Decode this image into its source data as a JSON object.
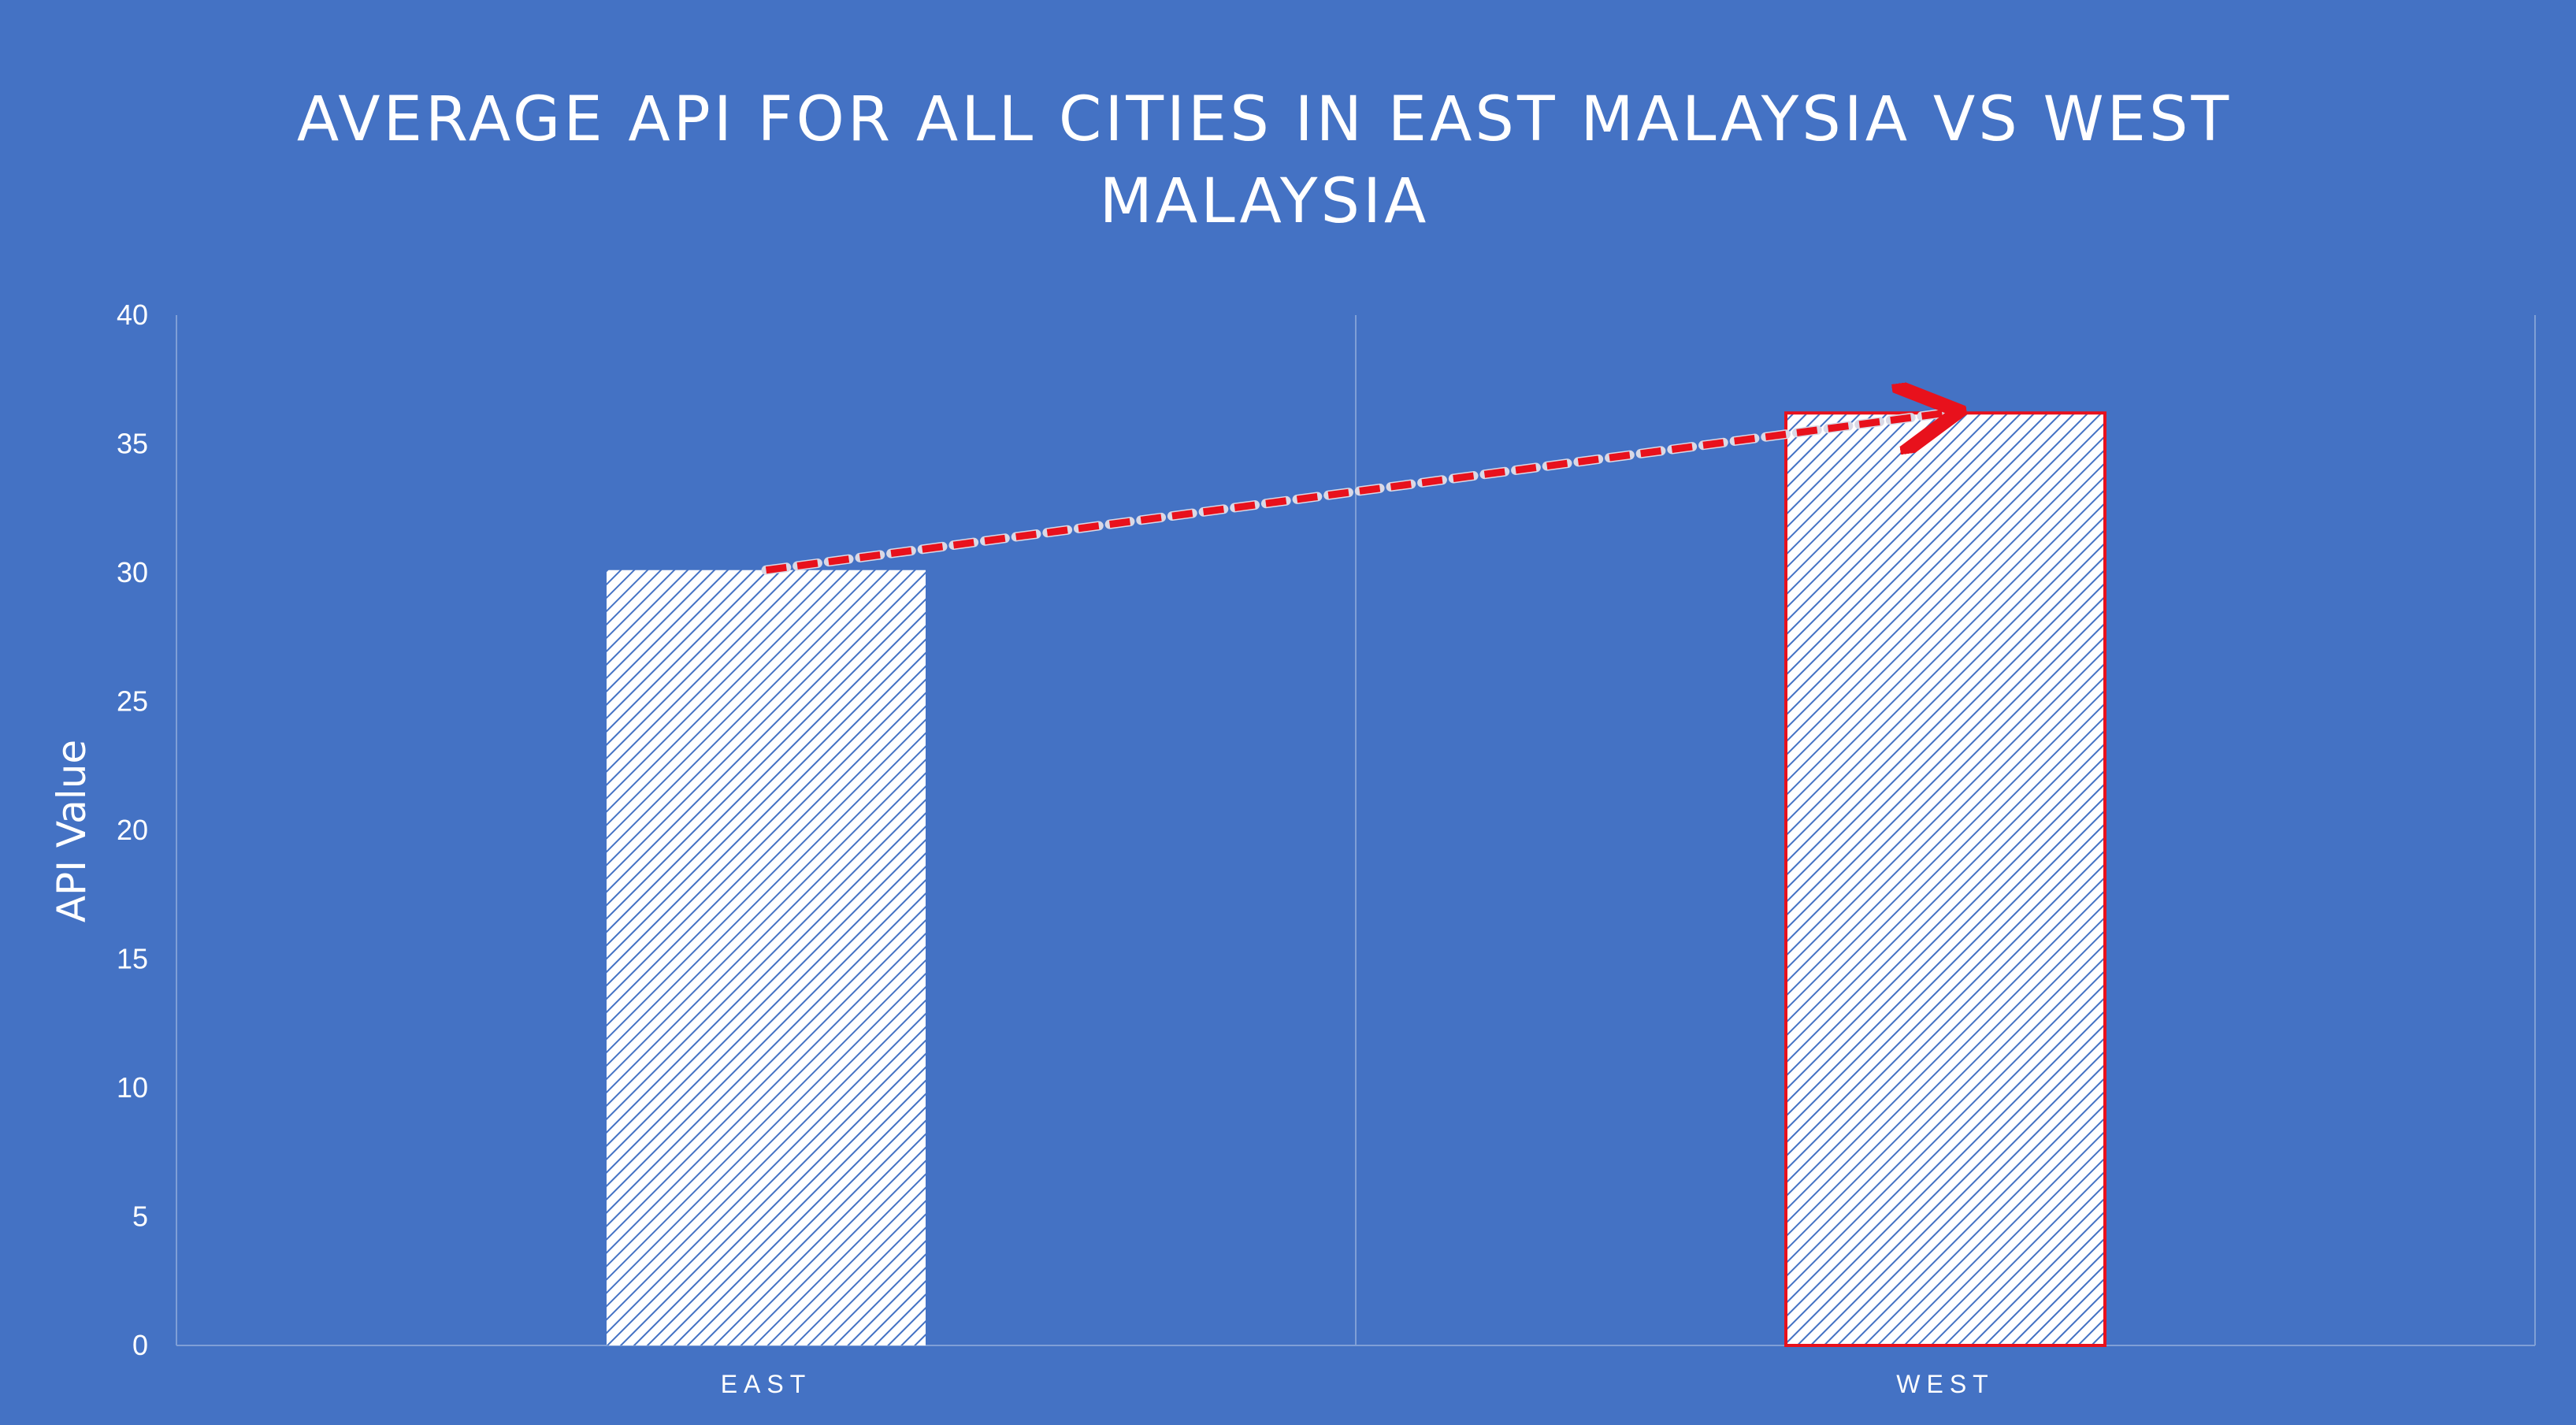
{
  "chart_data": {
    "type": "bar",
    "title_lines": [
      "AVERAGE API FOR ALL CITIES IN EAST MALAYSIA VS WEST",
      "MALAYSIA"
    ],
    "xlabel": "",
    "ylabel": "API Value",
    "categories": [
      "EAST",
      "WEST"
    ],
    "values": [
      30.1,
      36.2
    ],
    "ylim": [
      0,
      40
    ],
    "yticks": [
      "0",
      "5",
      "10",
      "15",
      "20",
      "25",
      "30",
      "35",
      "40"
    ],
    "grid": "vertical",
    "legend": "none",
    "highlight": {
      "category": "WEST",
      "outline_color": "#E8111C",
      "arrow": "dashed red arrow from EAST bar top to WEST bar top"
    }
  },
  "colors": {
    "background": "#4472C4",
    "bar_fill": "#FFFFFF",
    "hatch": "#4472C4",
    "highlight": "#E8111C",
    "gridline": "#7F9FD6"
  }
}
